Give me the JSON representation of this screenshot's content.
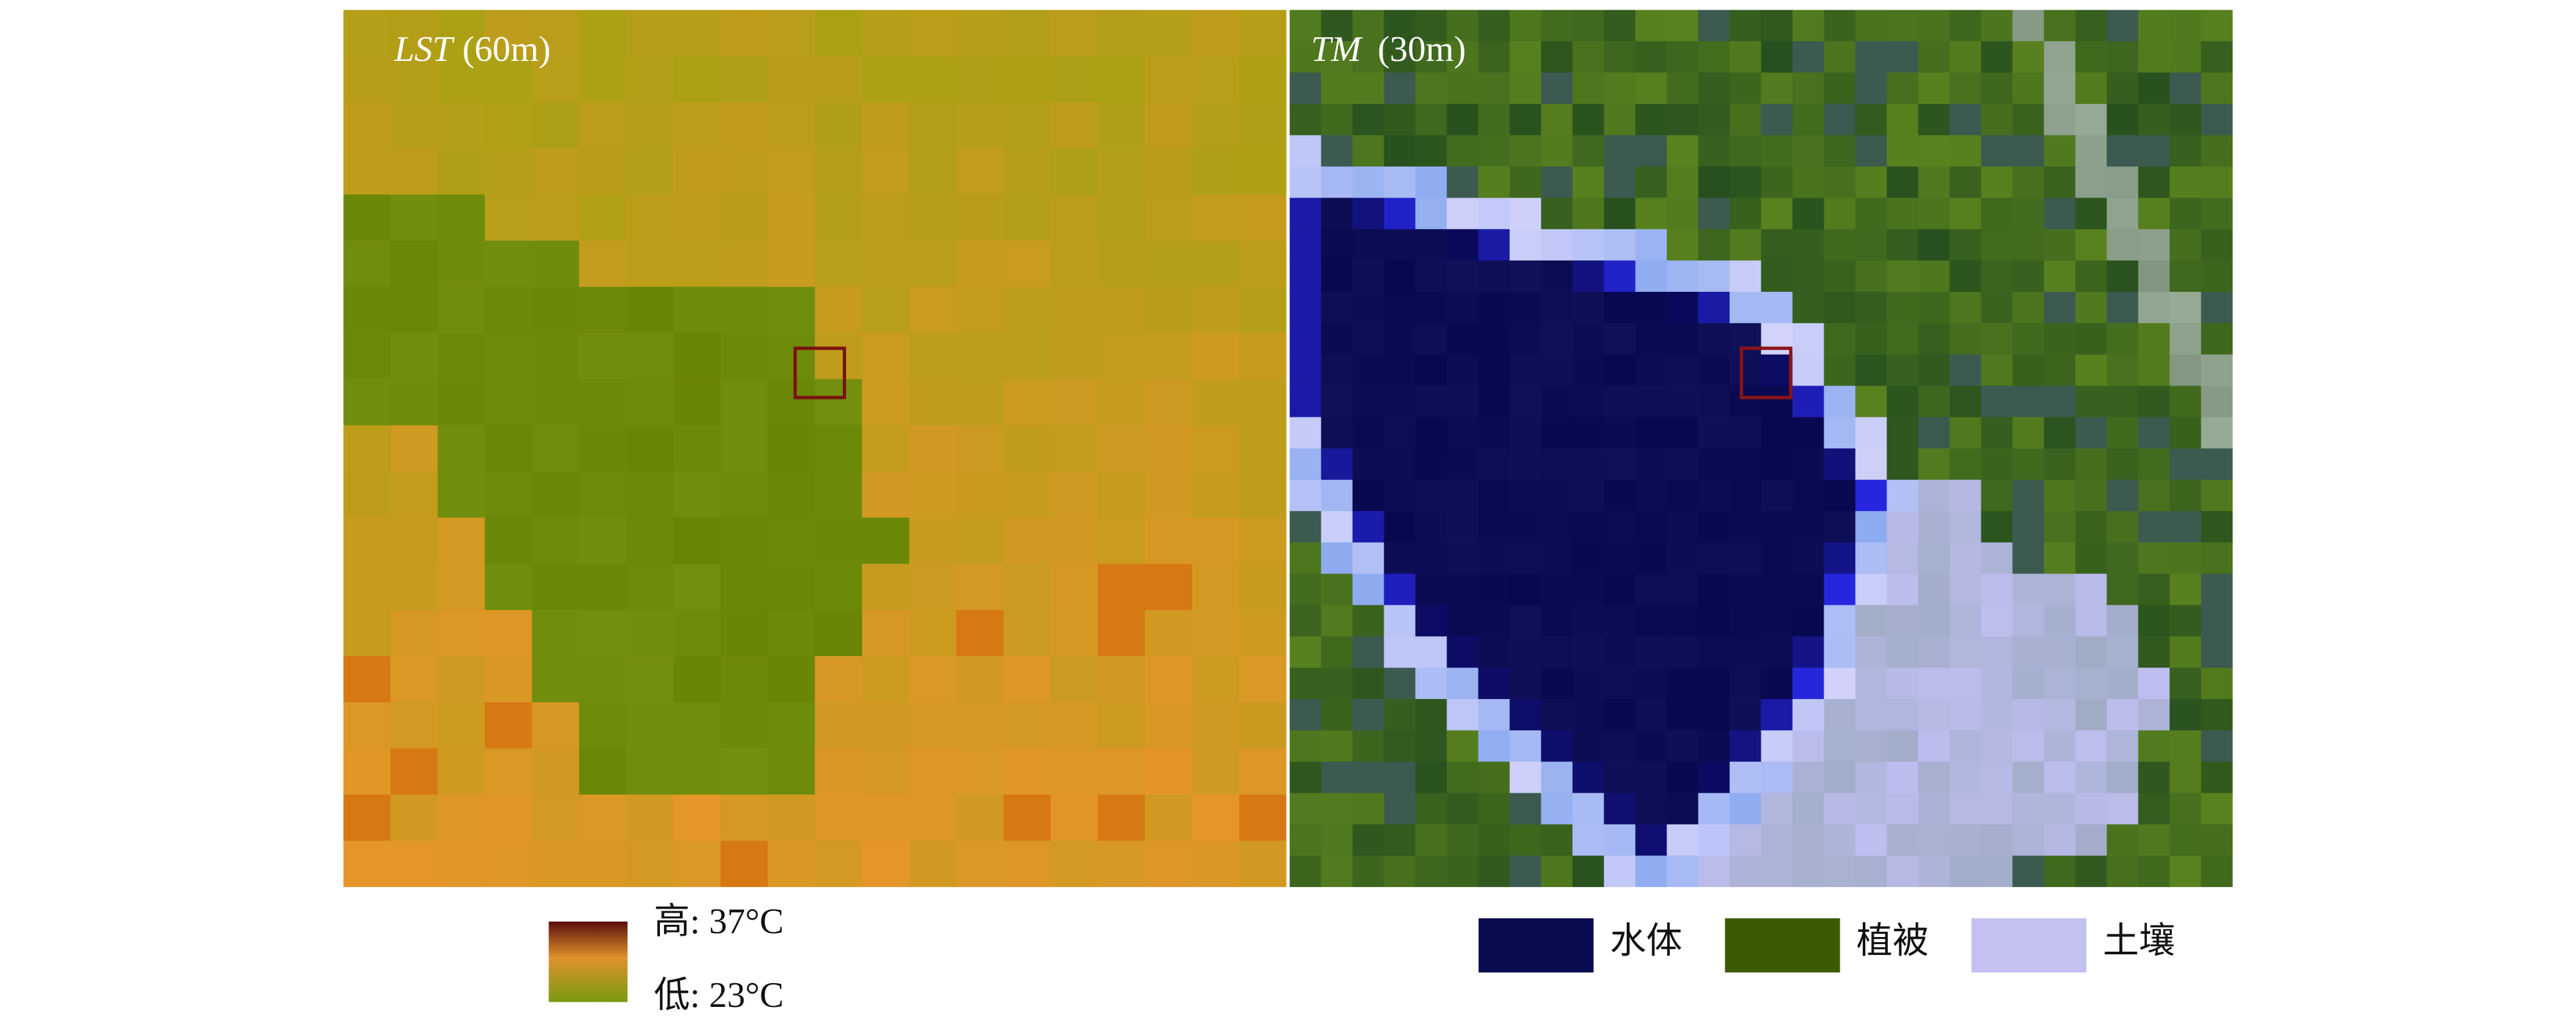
{
  "panels": [
    {
      "title": "LST",
      "resolution": "(60m)"
    },
    {
      "title": "TM",
      "resolution": "(30m)"
    }
  ],
  "legend_gradient": {
    "high": "高: 37°C",
    "low": "低: 23°C"
  },
  "legend_classes": [
    {
      "label": "水体",
      "color": "#0b0b52"
    },
    {
      "label": "植被",
      "color": "#3b5a02"
    },
    {
      "label": "土壤",
      "color": "#c3c0f2"
    }
  ]
}
